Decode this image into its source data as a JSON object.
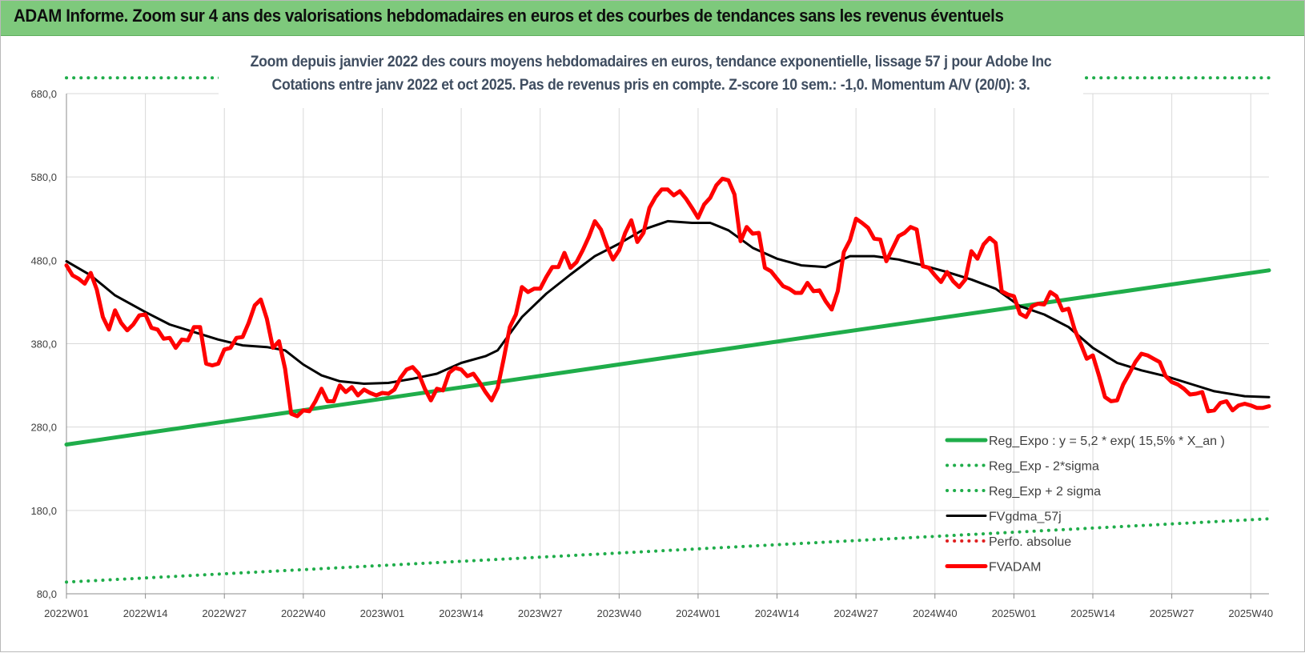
{
  "header": {
    "title": "ADAM Informe. Zoom sur 4 ans des valorisations hebdomadaires en euros et des courbes de tendances sans les revenus éventuels"
  },
  "chart_data": {
    "type": "line",
    "title": "Zoom depuis janvier 2022 des cours moyens hebdomadaires en euros, tendance exponentielle, lissage 57 j pour Adobe Inc",
    "subtitle": "Cotations entre janv 2022 et oct 2025. Pas de revenus pris en compte. Z-score 10 sem.: -1,0. Momentum A/V (20/0): 3.",
    "xlabel": "",
    "ylabel": "",
    "ylim": [
      80,
      680
    ],
    "y_ticks": [
      "80,0",
      "180,0",
      "280,0",
      "380,0",
      "480,0",
      "580,0",
      "680,0"
    ],
    "x_range": [
      1,
      199
    ],
    "x_ticks": [
      {
        "week": 1,
        "label": "2022W01"
      },
      {
        "week": 14,
        "label": "2022W14"
      },
      {
        "week": 27,
        "label": "2022W27"
      },
      {
        "week": 40,
        "label": "2022W40"
      },
      {
        "week": 53,
        "label": "2023W01"
      },
      {
        "week": 66,
        "label": "2023W14"
      },
      {
        "week": 79,
        "label": "2023W27"
      },
      {
        "week": 92,
        "label": "2023W40"
      },
      {
        "week": 105,
        "label": "2024W01"
      },
      {
        "week": 118,
        "label": "2024W14"
      },
      {
        "week": 131,
        "label": "2024W27"
      },
      {
        "week": 144,
        "label": "2024W40"
      },
      {
        "week": 157,
        "label": "2025W01"
      },
      {
        "week": 170,
        "label": "2025W14"
      },
      {
        "week": 183,
        "label": "2025W27"
      },
      {
        "week": 196,
        "label": "2025W40"
      }
    ],
    "grid": true,
    "legend_position": "bottom-right",
    "series": [
      {
        "name": "Reg_Expo : y = 5,2 * exp( 15,5% * X_an )",
        "color": "#1fad4a",
        "style": "solid-thick",
        "points": [
          [
            1,
            259
          ],
          [
            199,
            468
          ]
        ]
      },
      {
        "name": "Reg_Exp - 2*sigma",
        "color": "#1fad4a",
        "style": "dotted",
        "points": [
          [
            1,
            94
          ],
          [
            199,
            170
          ]
        ]
      },
      {
        "name": "Reg_Exp + 2 sigma",
        "color": "#1fad4a",
        "style": "dotted",
        "points": [
          [
            1,
            699
          ],
          [
            199,
            699
          ]
        ]
      },
      {
        "name": "FVgdma_57j",
        "color": "#000000",
        "style": "solid",
        "points": [
          [
            1,
            479
          ],
          [
            5,
            462
          ],
          [
            9,
            438
          ],
          [
            14,
            418
          ],
          [
            18,
            403
          ],
          [
            22,
            394
          ],
          [
            26,
            385
          ],
          [
            30,
            378
          ],
          [
            34,
            376
          ],
          [
            37,
            372
          ],
          [
            40,
            355
          ],
          [
            43,
            342
          ],
          [
            46,
            335
          ],
          [
            50,
            332
          ],
          [
            54,
            333
          ],
          [
            58,
            338
          ],
          [
            62,
            344
          ],
          [
            66,
            357
          ],
          [
            70,
            365
          ],
          [
            72,
            372
          ],
          [
            76,
            412
          ],
          [
            80,
            440
          ],
          [
            84,
            463
          ],
          [
            88,
            485
          ],
          [
            92,
            500
          ],
          [
            96,
            517
          ],
          [
            100,
            527
          ],
          [
            104,
            525
          ],
          [
            107,
            525
          ],
          [
            110,
            516
          ],
          [
            114,
            495
          ],
          [
            118,
            482
          ],
          [
            122,
            474
          ],
          [
            126,
            472
          ],
          [
            130,
            485
          ],
          [
            134,
            485
          ],
          [
            138,
            481
          ],
          [
            142,
            474
          ],
          [
            146,
            466
          ],
          [
            150,
            457
          ],
          [
            154,
            446
          ],
          [
            158,
            425
          ],
          [
            162,
            415
          ],
          [
            166,
            400
          ],
          [
            170,
            375
          ],
          [
            174,
            357
          ],
          [
            178,
            348
          ],
          [
            182,
            341
          ],
          [
            186,
            332
          ],
          [
            190,
            323
          ],
          [
            195,
            317
          ],
          [
            199,
            316
          ]
        ]
      },
      {
        "name": "Perfo. absolue",
        "color": "#e02020",
        "style": "dotted",
        "points": []
      },
      {
        "name": "FVADAM",
        "color": "#ff0000",
        "style": "solid-thick",
        "points": [
          [
            1,
            474
          ],
          [
            2,
            462
          ],
          [
            3,
            458
          ],
          [
            4,
            452
          ],
          [
            5,
            465
          ],
          [
            6,
            445
          ],
          [
            7,
            412
          ],
          [
            8,
            397
          ],
          [
            9,
            420
          ],
          [
            10,
            405
          ],
          [
            11,
            396
          ],
          [
            12,
            403
          ],
          [
            13,
            414
          ],
          [
            14,
            415
          ],
          [
            15,
            399
          ],
          [
            16,
            397
          ],
          [
            17,
            386
          ],
          [
            18,
            387
          ],
          [
            19,
            375
          ],
          [
            20,
            385
          ],
          [
            21,
            384
          ],
          [
            22,
            400
          ],
          [
            23,
            400
          ],
          [
            24,
            356
          ],
          [
            25,
            354
          ],
          [
            26,
            356
          ],
          [
            27,
            373
          ],
          [
            28,
            375
          ],
          [
            29,
            387
          ],
          [
            30,
            388
          ],
          [
            31,
            405
          ],
          [
            32,
            426
          ],
          [
            33,
            433
          ],
          [
            34,
            410
          ],
          [
            35,
            375
          ],
          [
            36,
            383
          ],
          [
            37,
            350
          ],
          [
            38,
            296
          ],
          [
            39,
            293
          ],
          [
            40,
            300
          ],
          [
            41,
            299
          ],
          [
            42,
            311
          ],
          [
            43,
            326
          ],
          [
            44,
            311
          ],
          [
            45,
            311
          ],
          [
            46,
            330
          ],
          [
            47,
            322
          ],
          [
            48,
            328
          ],
          [
            49,
            318
          ],
          [
            50,
            325
          ],
          [
            51,
            321
          ],
          [
            52,
            318
          ],
          [
            53,
            321
          ],
          [
            54,
            320
          ],
          [
            55,
            325
          ],
          [
            56,
            339
          ],
          [
            57,
            349
          ],
          [
            58,
            352
          ],
          [
            59,
            344
          ],
          [
            60,
            326
          ],
          [
            61,
            312
          ],
          [
            62,
            326
          ],
          [
            63,
            324
          ],
          [
            64,
            345
          ],
          [
            65,
            351
          ],
          [
            66,
            349
          ],
          [
            67,
            341
          ],
          [
            68,
            344
          ],
          [
            69,
            334
          ],
          [
            70,
            322
          ],
          [
            71,
            312
          ],
          [
            72,
            327
          ],
          [
            73,
            362
          ],
          [
            74,
            400
          ],
          [
            75,
            415
          ],
          [
            76,
            448
          ],
          [
            77,
            442
          ],
          [
            78,
            446
          ],
          [
            79,
            446
          ],
          [
            80,
            460
          ],
          [
            81,
            472
          ],
          [
            82,
            472
          ],
          [
            83,
            489
          ],
          [
            84,
            471
          ],
          [
            85,
            478
          ],
          [
            86,
            492
          ],
          [
            87,
            508
          ],
          [
            88,
            527
          ],
          [
            89,
            517
          ],
          [
            90,
            497
          ],
          [
            91,
            481
          ],
          [
            92,
            492
          ],
          [
            93,
            513
          ],
          [
            94,
            528
          ],
          [
            95,
            502
          ],
          [
            96,
            513
          ],
          [
            97,
            543
          ],
          [
            98,
            556
          ],
          [
            99,
            565
          ],
          [
            100,
            565
          ],
          [
            101,
            558
          ],
          [
            102,
            563
          ],
          [
            103,
            554
          ],
          [
            104,
            543
          ],
          [
            105,
            531
          ],
          [
            106,
            547
          ],
          [
            107,
            555
          ],
          [
            108,
            570
          ],
          [
            109,
            578
          ],
          [
            110,
            576
          ],
          [
            111,
            559
          ],
          [
            112,
            503
          ],
          [
            113,
            520
          ],
          [
            114,
            512
          ],
          [
            115,
            513
          ],
          [
            116,
            471
          ],
          [
            117,
            467
          ],
          [
            118,
            458
          ],
          [
            119,
            449
          ],
          [
            120,
            446
          ],
          [
            121,
            441
          ],
          [
            122,
            441
          ],
          [
            123,
            453
          ],
          [
            124,
            443
          ],
          [
            125,
            444
          ],
          [
            126,
            431
          ],
          [
            127,
            421
          ],
          [
            128,
            443
          ],
          [
            129,
            490
          ],
          [
            130,
            504
          ],
          [
            131,
            530
          ],
          [
            132,
            525
          ],
          [
            133,
            519
          ],
          [
            134,
            506
          ],
          [
            135,
            505
          ],
          [
            136,
            479
          ],
          [
            137,
            494
          ],
          [
            138,
            509
          ],
          [
            139,
            513
          ],
          [
            140,
            520
          ],
          [
            141,
            517
          ],
          [
            142,
            473
          ],
          [
            143,
            471
          ],
          [
            144,
            462
          ],
          [
            145,
            454
          ],
          [
            146,
            466
          ],
          [
            147,
            455
          ],
          [
            148,
            448
          ],
          [
            149,
            457
          ],
          [
            150,
            491
          ],
          [
            151,
            482
          ],
          [
            152,
            499
          ],
          [
            153,
            507
          ],
          [
            154,
            501
          ],
          [
            155,
            443
          ],
          [
            156,
            439
          ],
          [
            157,
            437
          ],
          [
            158,
            416
          ],
          [
            159,
            412
          ],
          [
            160,
            425
          ],
          [
            161,
            428
          ],
          [
            162,
            427
          ],
          [
            163,
            442
          ],
          [
            164,
            437
          ],
          [
            165,
            420
          ],
          [
            166,
            422
          ],
          [
            167,
            397
          ],
          [
            168,
            380
          ],
          [
            169,
            362
          ],
          [
            170,
            366
          ],
          [
            171,
            342
          ],
          [
            172,
            316
          ],
          [
            173,
            311
          ],
          [
            174,
            312
          ],
          [
            175,
            331
          ],
          [
            176,
            344
          ],
          [
            177,
            358
          ],
          [
            178,
            368
          ],
          [
            179,
            366
          ],
          [
            180,
            362
          ],
          [
            181,
            358
          ],
          [
            182,
            341
          ],
          [
            183,
            334
          ],
          [
            184,
            331
          ],
          [
            185,
            326
          ],
          [
            186,
            319
          ],
          [
            187,
            320
          ],
          [
            188,
            322
          ],
          [
            189,
            299
          ],
          [
            190,
            300
          ],
          [
            191,
            309
          ],
          [
            192,
            311
          ],
          [
            193,
            300
          ],
          [
            194,
            306
          ],
          [
            195,
            308
          ],
          [
            196,
            306
          ],
          [
            197,
            303
          ],
          [
            198,
            303
          ],
          [
            199,
            305
          ]
        ]
      }
    ]
  }
}
